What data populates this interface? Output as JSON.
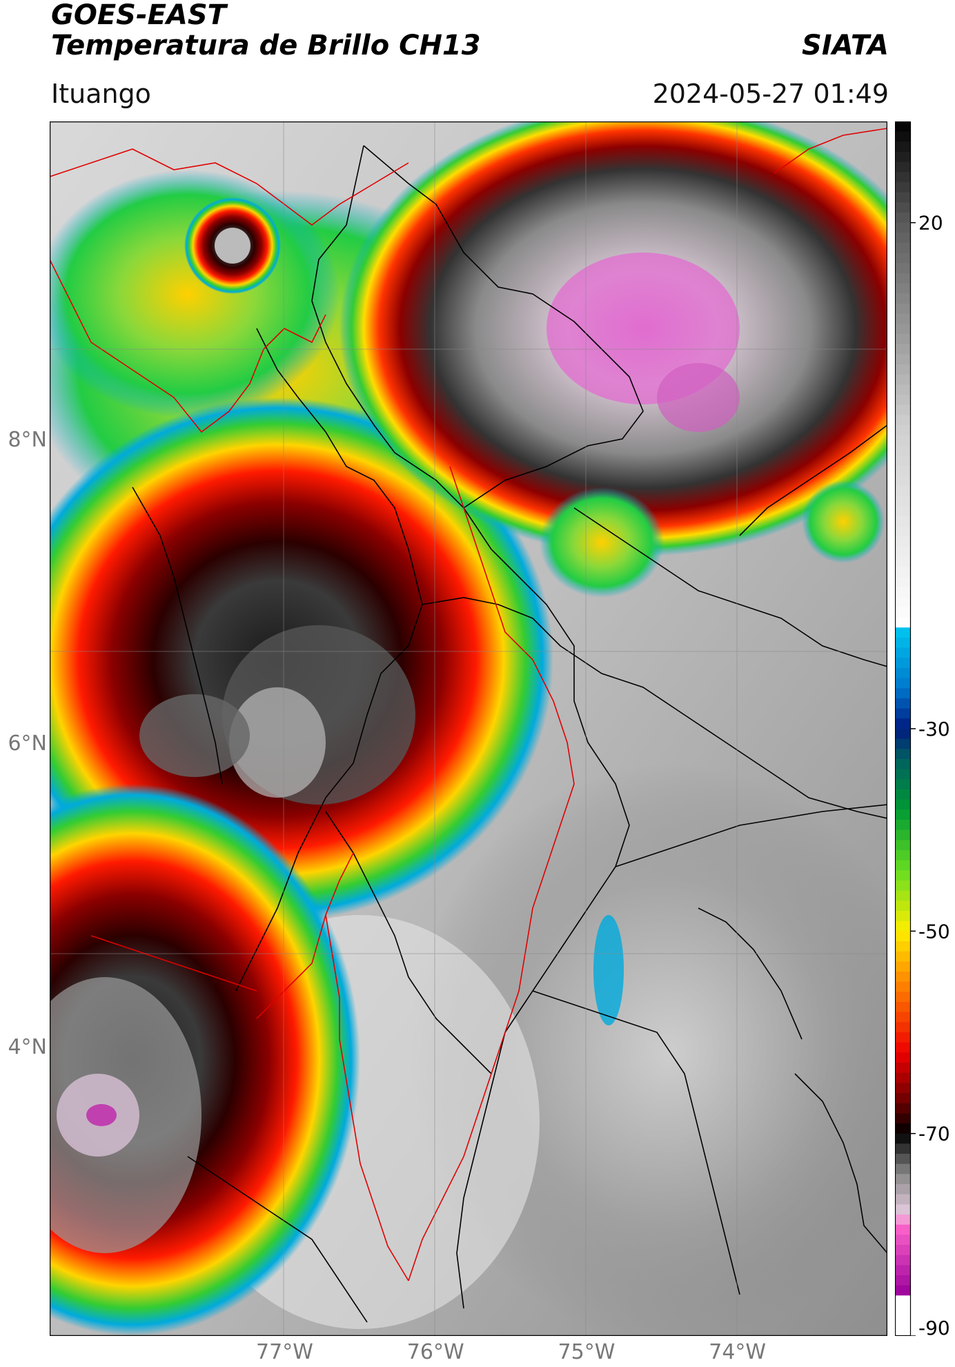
{
  "header": {
    "title_line1": "GOES-EAST",
    "title_line2": "Temperatura de Brillo CH13",
    "brand": "SIATA",
    "region": "Ituango",
    "timestamp": "2024-05-27 01:49"
  },
  "map": {
    "lat_labels": [
      {
        "text": "8°N",
        "value": 8
      },
      {
        "text": "6°N",
        "value": 6
      },
      {
        "text": "4°N",
        "value": 4
      }
    ],
    "lon_labels": [
      {
        "text": "77°W",
        "value": -77
      },
      {
        "text": "76°W",
        "value": -76
      },
      {
        "text": "75°W",
        "value": -75
      },
      {
        "text": "74°W",
        "value": -74
      }
    ],
    "lat_range": [
      2.1,
      10.1
    ],
    "lon_range": [
      -78.55,
      -73.0
    ],
    "gridlines": true,
    "border_color_national": "#000000",
    "border_color_basin": "#e00000"
  },
  "colorbar": {
    "min": -90,
    "max": 30,
    "tick_labels": [
      {
        "text": "20",
        "value": 20
      },
      {
        "text": "-30",
        "value": -30
      },
      {
        "text": "-50",
        "value": -50
      },
      {
        "text": "-70",
        "value": -70
      },
      {
        "text": "-90",
        "value": -90
      }
    ]
  }
}
